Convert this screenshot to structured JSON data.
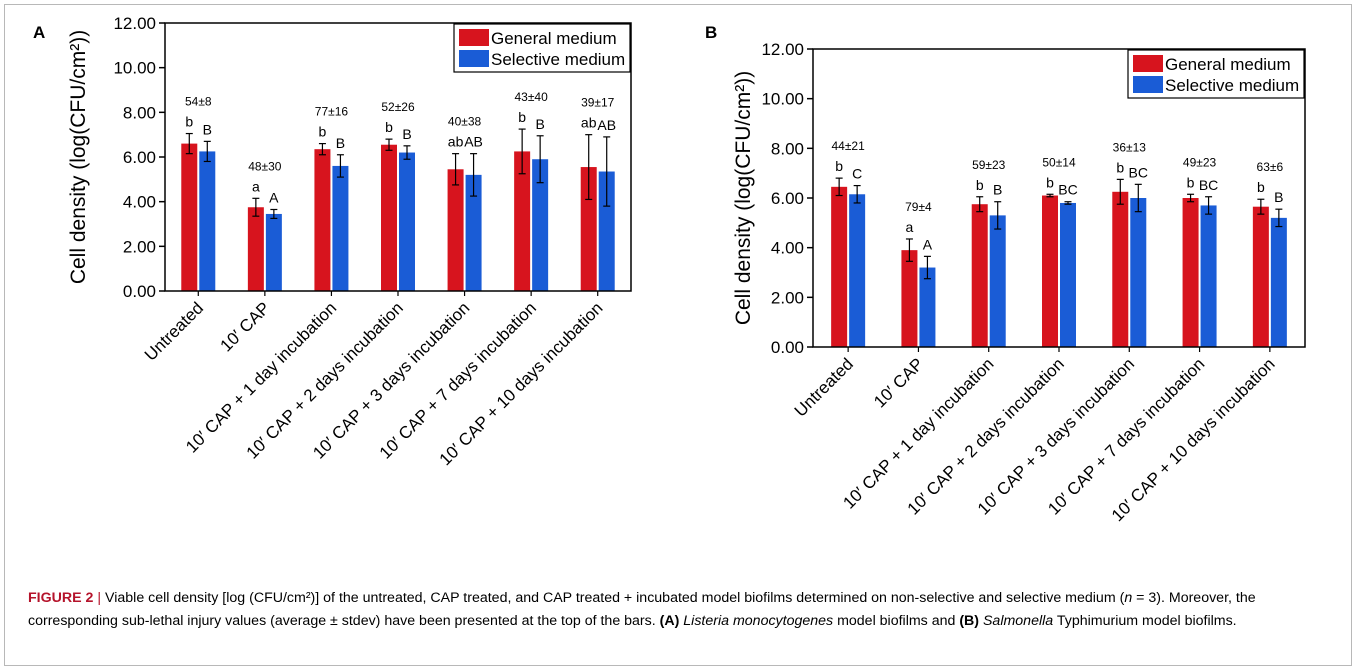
{
  "colors": {
    "general": "#d7141e",
    "selective": "#1a5cd6",
    "caption_label": "#b5132b"
  },
  "caption": {
    "label": "FIGURE 2",
    "sep": "|",
    "text_1": "Viable cell density [log (CFU/cm²)] of the untreated, CAP treated, and CAP treated + incubated model biofilms determined on non-selective and selective medium (",
    "n_label": "n",
    "text_2": " = 3). Moreover, the corresponding sub-lethal injury values (average ± stdev) have been presented at the top of the bars. ",
    "a_label": "(A)",
    "a_species": "Listeria monocytogenes",
    "a_text": " model biofilms and ",
    "b_label": "(B)",
    "b_species": "Salmonella",
    "b_text": " Typhimurium model biofilms."
  },
  "chart_data": [
    {
      "panel": "A",
      "type": "bar",
      "ylabel": "Cell density (log(CFU/cm²))",
      "ylim": [
        0,
        12
      ],
      "yticks": [
        "0.00",
        "2.00",
        "4.00",
        "6.00",
        "8.00",
        "10.00",
        "12.00"
      ],
      "grid": false,
      "legend": "top-right",
      "categories": [
        "Untreated",
        "10′ CAP",
        "10′ CAP + 1 day incubation",
        "10′ CAP + 2 days incubation",
        "10′ CAP + 3 days incubation",
        "10′ CAP + 7 days incubation",
        "10′ CAP + 10 days incubation"
      ],
      "series": [
        {
          "name": "General medium",
          "values": [
            6.6,
            3.75,
            6.35,
            6.55,
            5.45,
            6.25,
            5.55
          ],
          "errors": [
            0.45,
            0.4,
            0.25,
            0.25,
            0.7,
            1.0,
            1.45
          ],
          "letters": [
            "b",
            "a",
            "b",
            "b",
            "ab",
            "b",
            "ab"
          ]
        },
        {
          "name": "Selective medium",
          "values": [
            6.25,
            3.45,
            5.6,
            6.2,
            5.2,
            5.9,
            5.35
          ],
          "errors": [
            0.45,
            0.2,
            0.5,
            0.3,
            0.95,
            1.05,
            1.55
          ],
          "letters": [
            "B",
            "A",
            "B",
            "B",
            "AB",
            "B",
            "AB"
          ]
        }
      ],
      "injury": [
        "54±8",
        "48±30",
        "77±16",
        "52±26",
        "40±38",
        "43±40",
        "39±17"
      ]
    },
    {
      "panel": "B",
      "type": "bar",
      "ylabel": "Cell density (log(CFU/cm²))",
      "ylim": [
        0,
        12
      ],
      "yticks": [
        "0.00",
        "2.00",
        "4.00",
        "6.00",
        "8.00",
        "10.00",
        "12.00"
      ],
      "grid": false,
      "legend": "top-right",
      "categories": [
        "Untreated",
        "10′ CAP",
        "10′ CAP + 1 day incubation",
        "10′ CAP + 2 days incubation",
        "10′ CAP + 3 days incubation",
        "10′ CAP + 7 days incubation",
        "10′ CAP + 10 days incubation"
      ],
      "series": [
        {
          "name": "General medium",
          "values": [
            6.45,
            3.9,
            5.75,
            6.1,
            6.25,
            6.0,
            5.65
          ],
          "errors": [
            0.35,
            0.45,
            0.3,
            0.05,
            0.5,
            0.15,
            0.3
          ],
          "letters": [
            "b",
            "a",
            "b",
            "b",
            "b",
            "b",
            "b"
          ]
        },
        {
          "name": "Selective medium",
          "values": [
            6.15,
            3.2,
            5.3,
            5.8,
            6.0,
            5.7,
            5.2
          ],
          "errors": [
            0.35,
            0.45,
            0.55,
            0.05,
            0.55,
            0.35,
            0.35
          ],
          "letters": [
            "C",
            "A",
            "B",
            "BC",
            "BC",
            "BC",
            "B"
          ]
        }
      ],
      "injury": [
        "44±21",
        "79±4",
        "59±23",
        "50±14",
        "36±13",
        "49±23",
        "63±6"
      ]
    }
  ]
}
